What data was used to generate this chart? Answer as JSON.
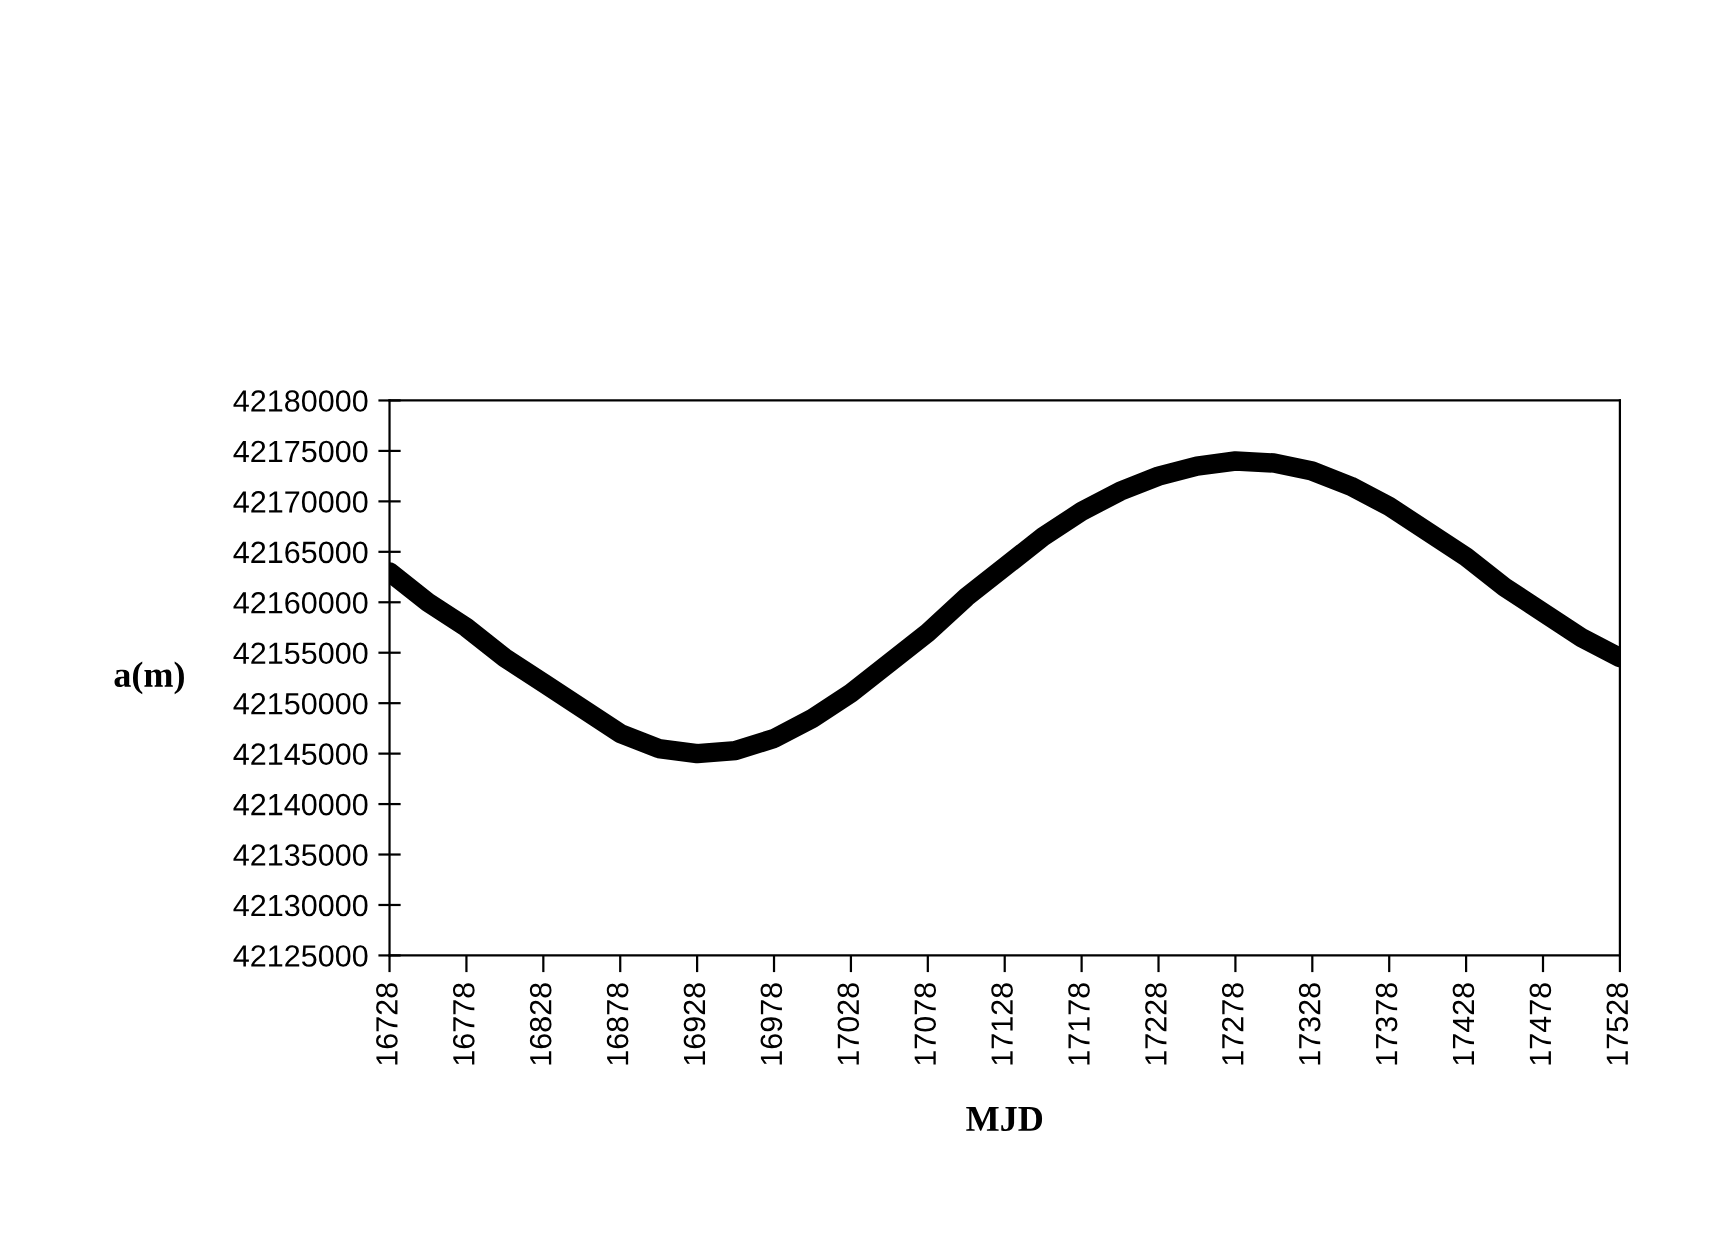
{
  "chart_data": {
    "type": "line",
    "xlabel": "MJD",
    "ylabel": "a(m)",
    "x": [
      16728,
      16753,
      16778,
      16803,
      16828,
      16853,
      16878,
      16903,
      16928,
      16953,
      16978,
      17003,
      17028,
      17053,
      17078,
      17103,
      17128,
      17153,
      17178,
      17203,
      17228,
      17253,
      17278,
      17303,
      17328,
      17353,
      17378,
      17403,
      17428,
      17453,
      17478,
      17503,
      17528
    ],
    "series": [
      {
        "color": "#000000",
        "values": [
          42163000,
          42160000,
          42157500,
          42154500,
          42152000,
          42149500,
          42147000,
          42145500,
          42145000,
          42145300,
          42146500,
          42148500,
          42151000,
          42154000,
          42157000,
          42160500,
          42163500,
          42166500,
          42169000,
          42171000,
          42172500,
          42173500,
          42174000,
          42173800,
          42173000,
          42171500,
          42169500,
          42167000,
          42164500,
          42161500,
          42159000,
          42156500,
          42154500
        ]
      }
    ],
    "xlim": [
      16728,
      17528
    ],
    "xticks": [
      16728,
      16778,
      16828,
      16878,
      16928,
      16978,
      17028,
      17078,
      17128,
      17178,
      17228,
      17278,
      17328,
      17378,
      17428,
      17478,
      17528
    ],
    "ylim": [
      42125000,
      42180000
    ],
    "yticks": [
      42125000,
      42130000,
      42135000,
      42140000,
      42145000,
      42150000,
      42155000,
      42160000,
      42165000,
      42170000,
      42175000,
      42180000
    ],
    "grid": false,
    "legend": false,
    "marker": "none",
    "line_style": "solid"
  }
}
